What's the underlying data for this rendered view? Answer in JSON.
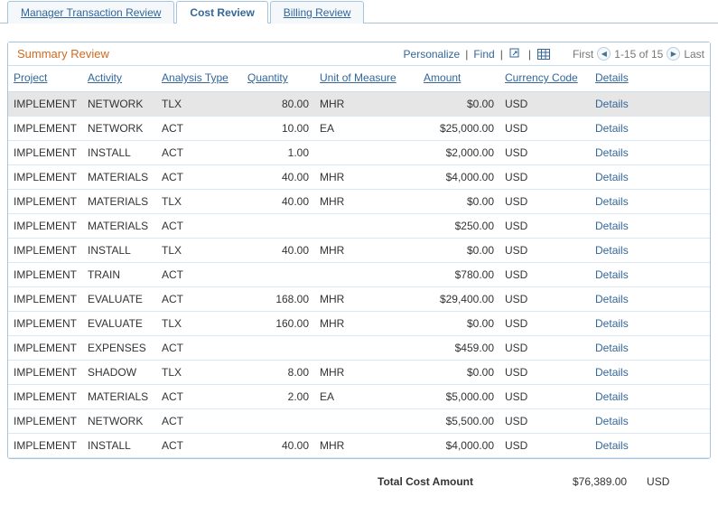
{
  "tabs": [
    {
      "label": "Manager Transaction Review",
      "active": false
    },
    {
      "label": "Cost Review",
      "active": true
    },
    {
      "label": "Billing Review",
      "active": false
    }
  ],
  "panel": {
    "title": "Summary Review",
    "personalize": "Personalize",
    "find": "Find",
    "first": "First",
    "last": "Last",
    "range": "1-15 of 15"
  },
  "columns": {
    "project": "Project",
    "activity": "Activity",
    "analysis": "Analysis Type",
    "quantity": "Quantity",
    "uom": "Unit of Measure",
    "amount": "Amount",
    "currency": "Currency Code",
    "details": "Details"
  },
  "details_label": "Details",
  "rows": [
    {
      "project": "IMPLEMENT",
      "activity": "NETWORK",
      "analysis": "TLX",
      "qty": "80.00",
      "uom": "MHR",
      "amount": "$0.00",
      "curr": "USD",
      "selected": true
    },
    {
      "project": "IMPLEMENT",
      "activity": "NETWORK",
      "analysis": "ACT",
      "qty": "10.00",
      "uom": "EA",
      "amount": "$25,000.00",
      "curr": "USD"
    },
    {
      "project": "IMPLEMENT",
      "activity": "INSTALL",
      "analysis": "ACT",
      "qty": "1.00",
      "uom": "",
      "amount": "$2,000.00",
      "curr": "USD"
    },
    {
      "project": "IMPLEMENT",
      "activity": "MATERIALS",
      "analysis": "ACT",
      "qty": "40.00",
      "uom": "MHR",
      "amount": "$4,000.00",
      "curr": "USD"
    },
    {
      "project": "IMPLEMENT",
      "activity": "MATERIALS",
      "analysis": "TLX",
      "qty": "40.00",
      "uom": "MHR",
      "amount": "$0.00",
      "curr": "USD"
    },
    {
      "project": "IMPLEMENT",
      "activity": "MATERIALS",
      "analysis": "ACT",
      "qty": "",
      "uom": "",
      "amount": "$250.00",
      "curr": "USD"
    },
    {
      "project": "IMPLEMENT",
      "activity": "INSTALL",
      "analysis": "TLX",
      "qty": "40.00",
      "uom": "MHR",
      "amount": "$0.00",
      "curr": "USD"
    },
    {
      "project": "IMPLEMENT",
      "activity": "TRAIN",
      "analysis": "ACT",
      "qty": "",
      "uom": "",
      "amount": "$780.00",
      "curr": "USD"
    },
    {
      "project": "IMPLEMENT",
      "activity": "EVALUATE",
      "analysis": "ACT",
      "qty": "168.00",
      "uom": "MHR",
      "amount": "$29,400.00",
      "curr": "USD"
    },
    {
      "project": "IMPLEMENT",
      "activity": "EVALUATE",
      "analysis": "TLX",
      "qty": "160.00",
      "uom": "MHR",
      "amount": "$0.00",
      "curr": "USD"
    },
    {
      "project": "IMPLEMENT",
      "activity": "EXPENSES",
      "analysis": "ACT",
      "qty": "",
      "uom": "",
      "amount": "$459.00",
      "curr": "USD"
    },
    {
      "project": "IMPLEMENT",
      "activity": "SHADOW",
      "analysis": "TLX",
      "qty": "8.00",
      "uom": "MHR",
      "amount": "$0.00",
      "curr": "USD"
    },
    {
      "project": "IMPLEMENT",
      "activity": "MATERIALS",
      "analysis": "ACT",
      "qty": "2.00",
      "uom": "EA",
      "amount": "$5,000.00",
      "curr": "USD"
    },
    {
      "project": "IMPLEMENT",
      "activity": "NETWORK",
      "analysis": "ACT",
      "qty": "",
      "uom": "",
      "amount": "$5,500.00",
      "curr": "USD"
    },
    {
      "project": "IMPLEMENT",
      "activity": "INSTALL",
      "analysis": "ACT",
      "qty": "40.00",
      "uom": "MHR",
      "amount": "$4,000.00",
      "curr": "USD"
    }
  ],
  "total": {
    "label": "Total Cost Amount",
    "value": "$76,389.00",
    "currency": "USD"
  }
}
